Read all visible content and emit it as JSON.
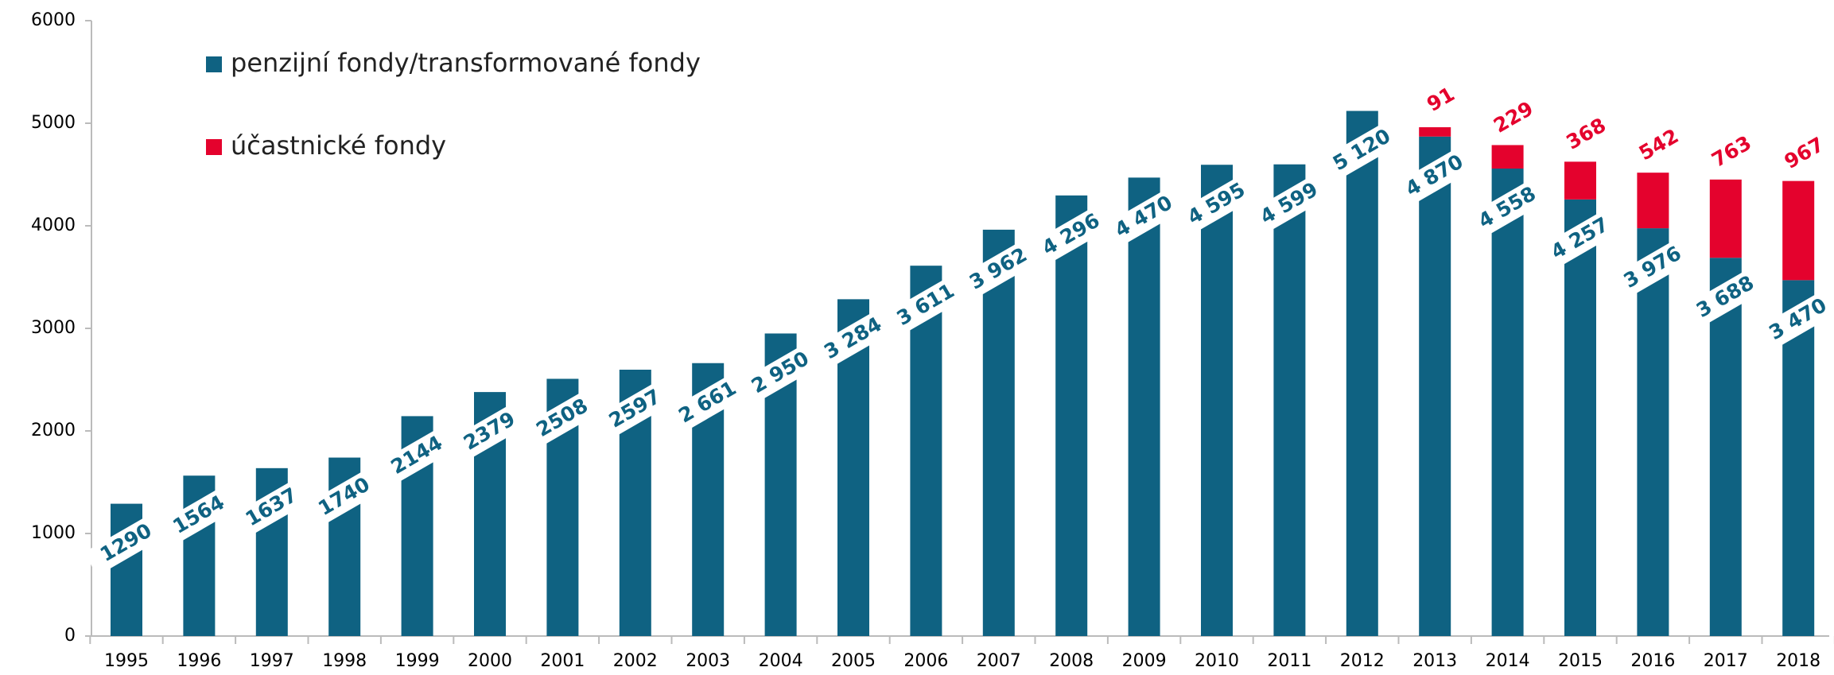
{
  "chart_data": {
    "type": "bar",
    "categories": [
      "1995",
      "1996",
      "1997",
      "1998",
      "1999",
      "2000",
      "2001",
      "2002",
      "2003",
      "2004",
      "2005",
      "2006",
      "2007",
      "2008",
      "2009",
      "2010",
      "2011",
      "2012",
      "2013",
      "2014",
      "2015",
      "2016",
      "2017",
      "2018"
    ],
    "series": [
      {
        "name": "penzijní fondy/transformované fondy",
        "color": "#0f6282",
        "values": [
          1290,
          1564,
          1637,
          1740,
          2144,
          2379,
          2508,
          2597,
          2661,
          2950,
          3284,
          3611,
          3962,
          4296,
          4470,
          4595,
          4599,
          5120,
          4870,
          4558,
          4257,
          3976,
          3688,
          3470
        ],
        "value_labels": [
          "1290",
          "1564",
          "1637",
          "1740",
          "2144",
          "2379",
          "2508",
          "2597",
          "2 661",
          "2 950",
          "3 284",
          "3 611",
          "3 962",
          "4 296",
          "4 470",
          "4 595",
          "4 599",
          "5 120",
          "4 870",
          "4 558",
          "4 257",
          "3 976",
          "3 688",
          "3 470"
        ]
      },
      {
        "name": "účastnické fondy",
        "color": "#e4022d",
        "values": [
          null,
          null,
          null,
          null,
          null,
          null,
          null,
          null,
          null,
          null,
          null,
          null,
          null,
          null,
          null,
          null,
          null,
          null,
          91,
          229,
          368,
          542,
          763,
          967
        ]
      }
    ],
    "stacked": true,
    "ylim": [
      0,
      6000
    ],
    "yticks": [
      0,
      1000,
      2000,
      3000,
      4000,
      5000,
      6000
    ]
  }
}
